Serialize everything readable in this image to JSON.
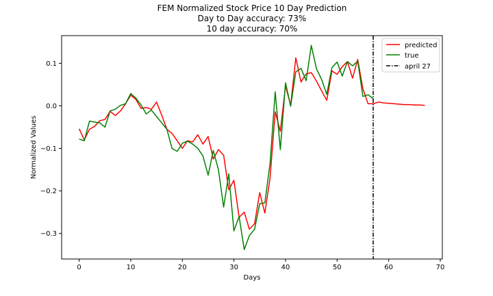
{
  "chart_data": {
    "type": "line",
    "title_lines": [
      "FEM Normalized Stock Price 10 Day Prediction",
      "Day to Day accuracy: 73%",
      "10 day accuracy: 70%"
    ],
    "xlabel": "Days",
    "ylabel": "Normalized Values",
    "xlim": [
      -3.4,
      70.4
    ],
    "ylim": [
      -0.36,
      0.165
    ],
    "xticks": [
      0,
      10,
      20,
      30,
      40,
      50,
      60,
      70
    ],
    "yticks": [
      -0.3,
      -0.2,
      -0.1,
      0.0,
      0.1
    ],
    "ytick_labels": [
      "−0.3",
      "−0.2",
      "−0.1",
      "0.0",
      "0.1"
    ],
    "grid": false,
    "legend_position": "top-right",
    "series": [
      {
        "name": "predicted",
        "color": "#ff0000",
        "style": "solid",
        "x": [
          0,
          1,
          2,
          3,
          4,
          5,
          6,
          7,
          8,
          9,
          10,
          11,
          12,
          13,
          14,
          15,
          16,
          17,
          18,
          19,
          20,
          21,
          22,
          23,
          24,
          25,
          26,
          27,
          28,
          29,
          30,
          31,
          32,
          33,
          34,
          35,
          36,
          37,
          38,
          39,
          40,
          41,
          42,
          43,
          44,
          45,
          46,
          47,
          48,
          49,
          50,
          51,
          52,
          53,
          54,
          55,
          56,
          57,
          58,
          59,
          60,
          61,
          62,
          63,
          64,
          65,
          66,
          67
        ],
        "y": [
          -0.054,
          -0.08,
          -0.055,
          -0.048,
          -0.035,
          -0.032,
          -0.013,
          -0.023,
          -0.012,
          0.005,
          0.025,
          0.015,
          -0.006,
          -0.004,
          -0.008,
          0.009,
          -0.022,
          -0.055,
          -0.065,
          -0.082,
          -0.1,
          -0.082,
          -0.085,
          -0.068,
          -0.09,
          -0.072,
          -0.125,
          -0.103,
          -0.116,
          -0.197,
          -0.175,
          -0.262,
          -0.25,
          -0.29,
          -0.277,
          -0.204,
          -0.252,
          -0.17,
          -0.014,
          -0.06,
          0.047,
          0.001,
          0.113,
          0.056,
          0.075,
          0.078,
          0.058,
          0.035,
          0.013,
          0.082,
          0.074,
          0.092,
          0.104,
          0.065,
          0.109,
          0.04,
          0.005,
          0.005,
          0.009,
          0.007,
          0.006,
          0.005,
          0.004,
          0.003,
          0.003,
          0.002,
          0.002,
          0.001
        ]
      },
      {
        "name": "true",
        "color": "#008000",
        "style": "solid",
        "x": [
          0,
          1,
          2,
          3,
          4,
          5,
          6,
          7,
          8,
          9,
          10,
          11,
          12,
          13,
          14,
          15,
          16,
          17,
          18,
          19,
          20,
          21,
          22,
          23,
          24,
          25,
          26,
          27,
          28,
          29,
          30,
          31,
          32,
          33,
          34,
          35,
          36,
          37,
          38,
          39,
          40,
          41,
          42,
          43,
          44,
          45,
          46,
          47,
          48,
          49,
          50,
          51,
          52,
          53,
          54,
          55,
          56,
          57
        ],
        "y": [
          -0.078,
          -0.082,
          -0.036,
          -0.038,
          -0.04,
          -0.05,
          -0.012,
          -0.008,
          0.001,
          0.005,
          0.029,
          0.018,
          0.002,
          -0.019,
          -0.01,
          -0.025,
          -0.04,
          -0.055,
          -0.1,
          -0.107,
          -0.088,
          -0.083,
          -0.09,
          -0.1,
          -0.118,
          -0.163,
          -0.105,
          -0.15,
          -0.238,
          -0.16,
          -0.294,
          -0.26,
          -0.338,
          -0.305,
          -0.29,
          -0.23,
          -0.228,
          -0.135,
          0.033,
          -0.103,
          0.054,
          -0.001,
          0.08,
          0.088,
          0.059,
          0.142,
          0.087,
          0.062,
          0.027,
          0.09,
          0.103,
          0.07,
          0.104,
          0.094,
          0.105,
          0.022,
          0.026,
          0.017
        ]
      }
    ],
    "vline": {
      "name": "april 27",
      "x": 57,
      "color": "#000000",
      "style": "dashdot"
    }
  }
}
